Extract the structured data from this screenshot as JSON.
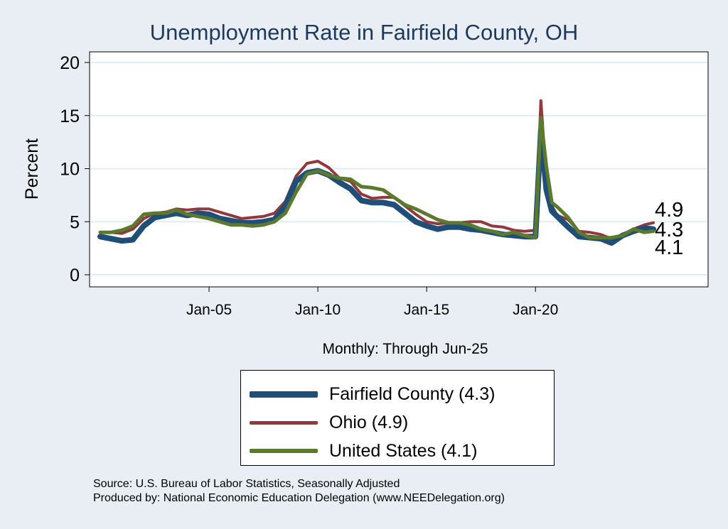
{
  "title": "Unemployment Rate in Fairfield  County, OH",
  "x_note": "Monthly: Through Jun-25",
  "source": [
    "Source: U.S. Bureau of Labor Statistics, Seasonally Adjusted",
    "Produced by: National Economic Education Delegation (www.NEEDelegation.org)"
  ],
  "legend": {
    "items": [
      {
        "label": "Fairfield  County (4.3)",
        "color": "#1f4e79"
      },
      {
        "label": "Ohio (4.9)",
        "color": "#93383c"
      },
      {
        "label": "United States (4.1)",
        "color": "#5b7a2e"
      }
    ]
  },
  "chart_data": {
    "type": "line",
    "title": "Unemployment Rate in Fairfield  County, OH",
    "xlabel": "Monthly: Through Jun-25",
    "ylabel": "Percent",
    "ylim": [
      0,
      20
    ],
    "yticks": [
      0,
      5,
      10,
      15,
      20
    ],
    "xlim": [
      "Jan-00",
      "Jun-25"
    ],
    "xticks": [
      "Jan-05",
      "Jan-10",
      "Jan-15",
      "Jan-20"
    ],
    "grid": true,
    "legend_position": "bottom",
    "end_labels": [
      "4.9",
      "4.3",
      "4.1"
    ],
    "series": [
      {
        "name": "Fairfield  County",
        "color": "#1f4e79",
        "points": [
          [
            "Jan-00",
            3.6
          ],
          [
            "Jul-00",
            3.4
          ],
          [
            "Jan-01",
            3.2
          ],
          [
            "Jul-01",
            3.3
          ],
          [
            "Jan-02",
            4.6
          ],
          [
            "Jul-02",
            5.4
          ],
          [
            "Jan-03",
            5.6
          ],
          [
            "Jul-03",
            5.8
          ],
          [
            "Jan-04",
            5.6
          ],
          [
            "Jul-04",
            5.8
          ],
          [
            "Jan-05",
            5.7
          ],
          [
            "Jul-05",
            5.3
          ],
          [
            "Jan-06",
            5.1
          ],
          [
            "Jul-06",
            4.9
          ],
          [
            "Jan-07",
            4.9
          ],
          [
            "Jul-07",
            5.0
          ],
          [
            "Jan-08",
            5.2
          ],
          [
            "Jul-08",
            6.5
          ],
          [
            "Jan-09",
            8.8
          ],
          [
            "Jul-09",
            9.6
          ],
          [
            "Jan-10",
            9.8
          ],
          [
            "Jul-10",
            9.4
          ],
          [
            "Jan-11",
            8.7
          ],
          [
            "Jul-11",
            8.1
          ],
          [
            "Jan-12",
            7.0
          ],
          [
            "Jul-12",
            6.8
          ],
          [
            "Jan-13",
            6.8
          ],
          [
            "Jul-13",
            6.6
          ],
          [
            "Jan-14",
            5.8
          ],
          [
            "Jul-14",
            5.0
          ],
          [
            "Jan-15",
            4.6
          ],
          [
            "Jul-15",
            4.3
          ],
          [
            "Jan-16",
            4.5
          ],
          [
            "Jul-16",
            4.5
          ],
          [
            "Jan-17",
            4.3
          ],
          [
            "Jul-17",
            4.2
          ],
          [
            "Jan-18",
            4.0
          ],
          [
            "Jul-18",
            3.8
          ],
          [
            "Jan-19",
            3.7
          ],
          [
            "Jul-19",
            3.6
          ],
          [
            "Jan-20",
            3.6
          ],
          [
            "Apr-20",
            13.6
          ],
          [
            "Jul-20",
            8.0
          ],
          [
            "Oct-20",
            6.0
          ],
          [
            "Jan-21",
            5.5
          ],
          [
            "Jul-21",
            4.5
          ],
          [
            "Jan-22",
            3.6
          ],
          [
            "Jul-22",
            3.5
          ],
          [
            "Jan-23",
            3.4
          ],
          [
            "Jul-23",
            3.0
          ],
          [
            "Jan-24",
            3.7
          ],
          [
            "Jul-24",
            4.1
          ],
          [
            "Jan-25",
            4.4
          ],
          [
            "Jun-25",
            4.3
          ]
        ]
      },
      {
        "name": "Ohio",
        "color": "#93383c",
        "points": [
          [
            "Jan-00",
            4.0
          ],
          [
            "Jul-00",
            4.0
          ],
          [
            "Jan-01",
            3.9
          ],
          [
            "Jul-01",
            4.3
          ],
          [
            "Jan-02",
            5.3
          ],
          [
            "Jul-02",
            5.8
          ],
          [
            "Jan-03",
            5.9
          ],
          [
            "Jul-03",
            6.2
          ],
          [
            "Jan-04",
            6.1
          ],
          [
            "Jul-04",
            6.2
          ],
          [
            "Jan-05",
            6.2
          ],
          [
            "Jul-05",
            5.9
          ],
          [
            "Jan-06",
            5.6
          ],
          [
            "Jul-06",
            5.3
          ],
          [
            "Jan-07",
            5.4
          ],
          [
            "Jul-07",
            5.5
          ],
          [
            "Jan-08",
            5.8
          ],
          [
            "Jul-08",
            6.9
          ],
          [
            "Jan-09",
            9.3
          ],
          [
            "Jul-09",
            10.5
          ],
          [
            "Jan-10",
            10.7
          ],
          [
            "Jul-10",
            10.1
          ],
          [
            "Jan-11",
            9.1
          ],
          [
            "Jul-11",
            8.8
          ],
          [
            "Jan-12",
            7.6
          ],
          [
            "Jul-12",
            7.2
          ],
          [
            "Jan-13",
            7.3
          ],
          [
            "Jul-13",
            7.3
          ],
          [
            "Jan-14",
            6.5
          ],
          [
            "Jul-14",
            5.7
          ],
          [
            "Jan-15",
            5.0
          ],
          [
            "Jul-15",
            4.8
          ],
          [
            "Jan-16",
            4.9
          ],
          [
            "Jul-16",
            4.9
          ],
          [
            "Jan-17",
            5.0
          ],
          [
            "Jul-17",
            5.0
          ],
          [
            "Jan-18",
            4.6
          ],
          [
            "Jul-18",
            4.5
          ],
          [
            "Jan-19",
            4.2
          ],
          [
            "Jul-19",
            4.1
          ],
          [
            "Jan-20",
            4.2
          ],
          [
            "Apr-20",
            16.4
          ],
          [
            "Jul-20",
            9.0
          ],
          [
            "Oct-20",
            6.5
          ],
          [
            "Jan-21",
            5.6
          ],
          [
            "Jul-21",
            5.2
          ],
          [
            "Jan-22",
            4.1
          ],
          [
            "Jul-22",
            4.0
          ],
          [
            "Jan-23",
            3.8
          ],
          [
            "Jul-23",
            3.4
          ],
          [
            "Jan-24",
            3.8
          ],
          [
            "Jul-24",
            4.3
          ],
          [
            "Jan-25",
            4.7
          ],
          [
            "Jun-25",
            4.9
          ]
        ]
      },
      {
        "name": "United States",
        "color": "#5b7a2e",
        "points": [
          [
            "Jan-00",
            4.0
          ],
          [
            "Jul-00",
            4.0
          ],
          [
            "Jan-01",
            4.2
          ],
          [
            "Jul-01",
            4.6
          ],
          [
            "Jan-02",
            5.7
          ],
          [
            "Jul-02",
            5.8
          ],
          [
            "Jan-03",
            5.8
          ],
          [
            "Jul-03",
            6.1
          ],
          [
            "Jan-04",
            5.7
          ],
          [
            "Jul-04",
            5.5
          ],
          [
            "Jan-05",
            5.3
          ],
          [
            "Jul-05",
            5.0
          ],
          [
            "Jan-06",
            4.7
          ],
          [
            "Jul-06",
            4.7
          ],
          [
            "Jan-07",
            4.6
          ],
          [
            "Jul-07",
            4.7
          ],
          [
            "Jan-08",
            5.0
          ],
          [
            "Jul-08",
            5.8
          ],
          [
            "Jan-09",
            7.8
          ],
          [
            "Jul-09",
            9.5
          ],
          [
            "Jan-10",
            9.8
          ],
          [
            "Jul-10",
            9.4
          ],
          [
            "Jan-11",
            9.1
          ],
          [
            "Jul-11",
            9.0
          ],
          [
            "Jan-12",
            8.3
          ],
          [
            "Jul-12",
            8.2
          ],
          [
            "Jan-13",
            8.0
          ],
          [
            "Jul-13",
            7.3
          ],
          [
            "Jan-14",
            6.6
          ],
          [
            "Jul-14",
            6.2
          ],
          [
            "Jan-15",
            5.7
          ],
          [
            "Jul-15",
            5.2
          ],
          [
            "Jan-16",
            4.9
          ],
          [
            "Jul-16",
            4.9
          ],
          [
            "Jan-17",
            4.7
          ],
          [
            "Jul-17",
            4.3
          ],
          [
            "Jan-18",
            4.1
          ],
          [
            "Jul-18",
            3.8
          ],
          [
            "Jan-19",
            4.0
          ],
          [
            "Jul-19",
            3.7
          ],
          [
            "Jan-20",
            3.5
          ],
          [
            "Apr-20",
            14.8
          ],
          [
            "Jul-20",
            10.2
          ],
          [
            "Oct-20",
            6.8
          ],
          [
            "Jan-21",
            6.4
          ],
          [
            "Jul-21",
            5.4
          ],
          [
            "Jan-22",
            4.0
          ],
          [
            "Jul-22",
            3.5
          ],
          [
            "Jan-23",
            3.5
          ],
          [
            "Jul-23",
            3.5
          ],
          [
            "Jan-24",
            3.7
          ],
          [
            "Jul-24",
            4.3
          ],
          [
            "Jan-25",
            4.0
          ],
          [
            "Jun-25",
            4.1
          ]
        ]
      }
    ]
  }
}
